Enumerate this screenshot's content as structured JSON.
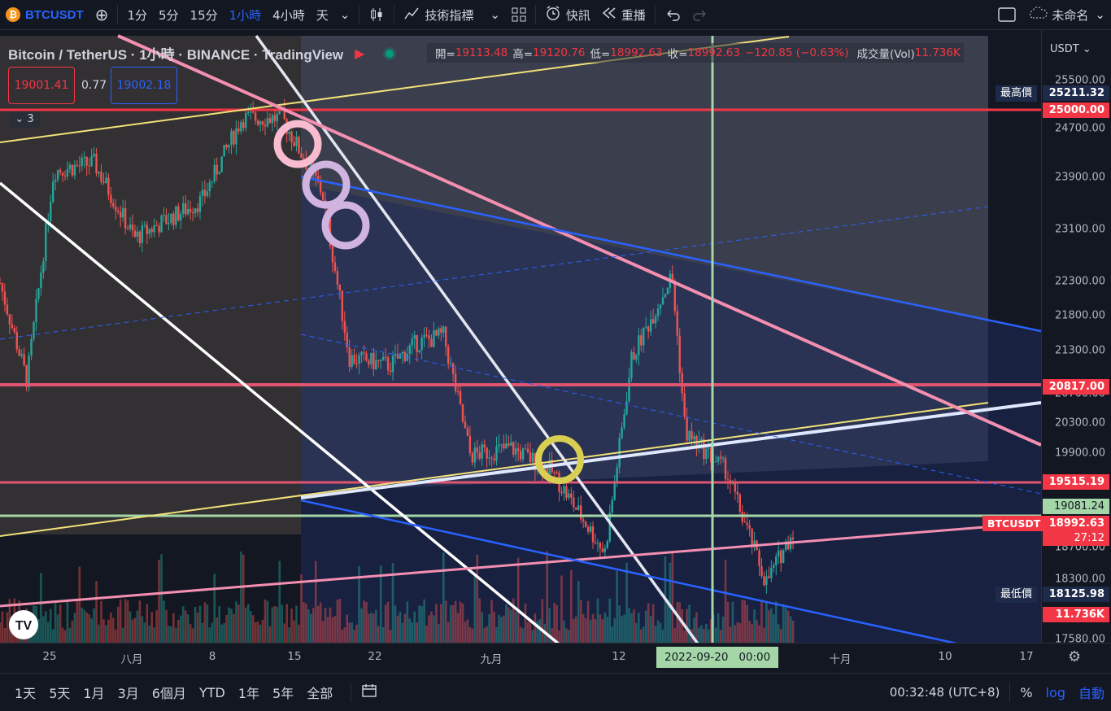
{
  "toolbar": {
    "symbol": "BTCUSDT",
    "add": "⊕",
    "timeframes": [
      "1分",
      "5分",
      "15分",
      "1小時",
      "4小時",
      "天"
    ],
    "active_timeframe": "1小時",
    "indicators": "技術指標",
    "alert": "快訊",
    "replay": "重播",
    "layout_name": "未命名"
  },
  "legend": {
    "title": "Bitcoin / TetherUS · 1小時 · BINANCE · TradingView",
    "open_label": "開=",
    "open": "19113.48",
    "high_label": "高=",
    "high": "19120.76",
    "low_label": "低=",
    "low": "18992.63",
    "close_label": "收=",
    "close": "18992.63",
    "change": "−120.85 (−0.63%)",
    "vol_label": "成交量(Vol)",
    "vol": "11.736K",
    "bid": "19001.41",
    "spread": "0.77",
    "ask": "19002.18",
    "collapse": "3"
  },
  "price_axis": {
    "currency": "USDT",
    "ticks": [
      "25500.00",
      "24700.00",
      "23900.00",
      "23100.00",
      "22300.00",
      "21800.00",
      "21300.00",
      "20700.00",
      "20300.00",
      "19900.00",
      "18700.00",
      "18300.00",
      "17580.00"
    ],
    "high_label": "最高價",
    "high_value": "25211.32",
    "low_label": "最低價",
    "low_value": "18125.98",
    "levels": [
      "25000.00",
      "20817.00",
      "19515.19"
    ],
    "hline": "19081.24",
    "symbol_tag": "BTCUSDT",
    "last": "18992.63",
    "countdown": "27:12",
    "vol_tag": "11.736K"
  },
  "time_axis": {
    "ticks": [
      "25",
      "八月",
      "8",
      "15",
      "22",
      "九月",
      "12",
      "十月",
      "10",
      "17"
    ],
    "crosshair": "2022-09-20   00:00"
  },
  "bottombar": {
    "ranges": [
      "1天",
      "5天",
      "1月",
      "3月",
      "6個月",
      "YTD",
      "1年",
      "5年",
      "全部"
    ],
    "clock": "00:32:48 (UTC+8)",
    "percent": "%",
    "log": "log",
    "auto": "自動"
  },
  "colors": {
    "up": "#26a69a",
    "down": "#ef5350",
    "accent": "#2962ff",
    "level_red": "#f23645",
    "crosshair_green": "#a5d6a7"
  },
  "chart_data": {
    "type": "candlestick",
    "symbol": "BTCUSDT",
    "timeframe": "1小時",
    "x_range": [
      "2022-07-24",
      "2022-09-21"
    ],
    "ylim": [
      17500,
      25600
    ],
    "log_scale": false,
    "horizontal_levels": [
      25000.0,
      20817.0,
      19515.19,
      19081.24
    ],
    "price_path": [
      {
        "date": "2022-07-24",
        "price": 22300
      },
      {
        "date": "2022-07-26",
        "price": 21000
      },
      {
        "date": "2022-07-28",
        "price": 23800
      },
      {
        "date": "2022-07-31",
        "price": 23900
      },
      {
        "date": "2022-08-03",
        "price": 22900
      },
      {
        "date": "2022-08-08",
        "price": 23400
      },
      {
        "date": "2022-08-11",
        "price": 24500
      },
      {
        "date": "2022-08-14",
        "price": 24500
      },
      {
        "date": "2022-08-17",
        "price": 23500
      },
      {
        "date": "2022-08-19",
        "price": 21300
      },
      {
        "date": "2022-08-22",
        "price": 21200
      },
      {
        "date": "2022-08-24",
        "price": 21500
      },
      {
        "date": "2022-08-26",
        "price": 21600
      },
      {
        "date": "2022-08-28",
        "price": 20000
      },
      {
        "date": "2022-08-31",
        "price": 20100
      },
      {
        "date": "2022-09-03",
        "price": 19800
      },
      {
        "date": "2022-09-07",
        "price": 18700
      },
      {
        "date": "2022-09-09",
        "price": 21300
      },
      {
        "date": "2022-09-12",
        "price": 22400
      },
      {
        "date": "2022-09-13",
        "price": 20300
      },
      {
        "date": "2022-09-16",
        "price": 19800
      },
      {
        "date": "2022-09-19",
        "price": 18300
      },
      {
        "date": "2022-09-21",
        "price": 18993
      }
    ]
  }
}
